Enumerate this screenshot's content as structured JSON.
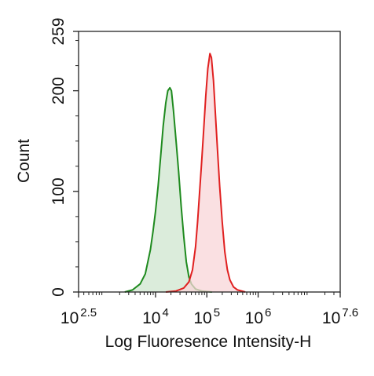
{
  "chart_data": {
    "type": "area",
    "title": "",
    "xlabel": "Log Fluoresence Intensity-H",
    "ylabel": "Count",
    "x_scale": "log",
    "xlim_log10": [
      2.5,
      7.6
    ],
    "ylim": [
      0,
      259
    ],
    "grid": false,
    "legend": "none",
    "x_ticks": [
      {
        "base": "10",
        "exponent": "2.5",
        "log10": 2.5
      },
      {
        "base": "10",
        "exponent": "4",
        "log10": 4
      },
      {
        "base": "10",
        "exponent": "5",
        "log10": 5
      },
      {
        "base": "10",
        "exponent": "6",
        "log10": 6
      },
      {
        "base": "10",
        "exponent": "7.6",
        "log10": 7.6
      }
    ],
    "y_ticks": [
      {
        "label": "0",
        "value": 0
      },
      {
        "label": "100",
        "value": 100
      },
      {
        "label": "200",
        "value": 200
      },
      {
        "label": "259",
        "value": 259
      }
    ],
    "series": [
      {
        "color": "#1e8a1e",
        "fill": "#cfe6cf",
        "points": [
          [
            3.4,
            0
          ],
          [
            3.55,
            2
          ],
          [
            3.7,
            8
          ],
          [
            3.8,
            18
          ],
          [
            3.9,
            42
          ],
          [
            3.95,
            60
          ],
          [
            4.0,
            80
          ],
          [
            4.05,
            105
          ],
          [
            4.1,
            135
          ],
          [
            4.15,
            165
          ],
          [
            4.2,
            188
          ],
          [
            4.24,
            200
          ],
          [
            4.28,
            203
          ],
          [
            4.31,
            200
          ],
          [
            4.35,
            180
          ],
          [
            4.4,
            150
          ],
          [
            4.45,
            120
          ],
          [
            4.5,
            85
          ],
          [
            4.55,
            55
          ],
          [
            4.6,
            30
          ],
          [
            4.65,
            15
          ],
          [
            4.7,
            8
          ],
          [
            4.78,
            3
          ],
          [
            4.9,
            1
          ],
          [
            5.1,
            0
          ]
        ]
      },
      {
        "color": "#e02020",
        "fill": "#f8d5d8",
        "points": [
          [
            4.2,
            0
          ],
          [
            4.4,
            1
          ],
          [
            4.55,
            4
          ],
          [
            4.65,
            10
          ],
          [
            4.72,
            22
          ],
          [
            4.78,
            45
          ],
          [
            4.82,
            70
          ],
          [
            4.86,
            100
          ],
          [
            4.9,
            130
          ],
          [
            4.94,
            162
          ],
          [
            4.98,
            195
          ],
          [
            5.02,
            222
          ],
          [
            5.06,
            237
          ],
          [
            5.09,
            233
          ],
          [
            5.13,
            210
          ],
          [
            5.17,
            175
          ],
          [
            5.21,
            140
          ],
          [
            5.25,
            105
          ],
          [
            5.3,
            70
          ],
          [
            5.35,
            40
          ],
          [
            5.4,
            22
          ],
          [
            5.45,
            12
          ],
          [
            5.52,
            5
          ],
          [
            5.6,
            2
          ],
          [
            5.75,
            0
          ]
        ]
      }
    ]
  }
}
